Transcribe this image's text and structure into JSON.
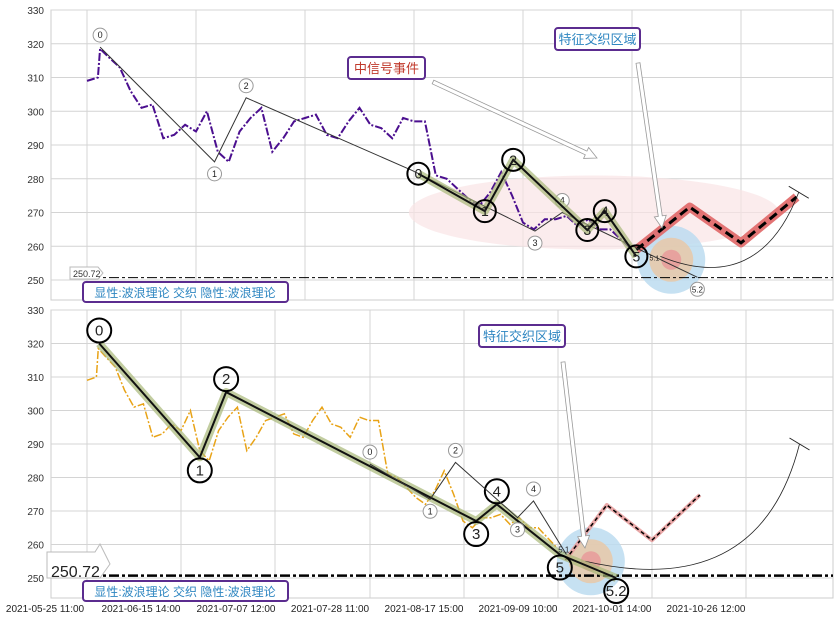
{
  "chart_data": [
    {
      "type": "line",
      "panel": "top",
      "ylim": [
        244,
        330
      ],
      "yticks": [
        250,
        260,
        270,
        280,
        290,
        300,
        310,
        320,
        330
      ],
      "grid": true,
      "price_series": {
        "color": "#4b0f8f",
        "style": "dash-dot",
        "values": [
          309,
          310,
          316,
          313,
          306,
          301,
          302,
          292,
          293,
          296,
          294,
          300,
          288,
          285,
          294,
          298,
          301,
          288,
          292,
          297,
          298,
          299,
          293,
          292,
          297,
          301,
          296,
          295,
          292,
          298,
          297,
          297,
          281,
          280,
          277,
          274,
          272,
          276,
          282,
          275,
          267,
          265,
          268,
          268,
          269,
          266,
          268,
          265,
          265,
          262,
          259
        ],
        "peak": [
          1.2,
          318.5
        ]
      },
      "hline": {
        "value": 250.72,
        "label": "250.72"
      },
      "waves": [
        {
          "kind": "minor",
          "points": [
            [
              1.2,
              319
            ],
            [
              11.7,
              285
            ],
            [
              14.6,
              304
            ],
            [
              29.8,
              282.5
            ],
            [
              41.1,
              264.5
            ],
            [
              43.6,
              270
            ],
            [
              56,
              250.8
            ]
          ],
          "labels": [
            "0",
            "1",
            "2",
            "",
            "3",
            "4",
            "5.2"
          ]
        },
        {
          "kind": "major",
          "points": [
            [
              30.4,
              281.5
            ],
            [
              36.5,
              270.4
            ],
            [
              39.1,
              285.6
            ],
            [
              45.9,
              264.8
            ],
            [
              47.5,
              270.4
            ],
            [
              50.4,
              257
            ]
          ],
          "labels": [
            "0",
            "1",
            "2",
            "3",
            "4",
            "5"
          ],
          "sublabel": "5.1"
        }
      ],
      "projection": {
        "color": "#e06666",
        "points": [
          [
            50.4,
            259
          ],
          [
            55.3,
            271.6
          ],
          [
            60,
            261
          ],
          [
            65.1,
            274.6
          ]
        ]
      },
      "arc": [
        [
          52.6,
          257
        ],
        [
          65.3,
          276
        ]
      ],
      "zone": {
        "center": [
          53.6,
          256
        ],
        "colors": [
          "#bcdcf0",
          "#e8c8a8",
          "#e89a9a"
        ]
      },
      "ellipse_center": [
        46.5,
        270
      ],
      "annotations": [
        {
          "text": "中信号事件",
          "color": "#c0392b"
        },
        {
          "text": "特征交织区域",
          "color": "#2e86c1"
        }
      ],
      "legend": "显性:波浪理论 交织 隐性:波浪理论"
    },
    {
      "type": "line",
      "panel": "bottom",
      "ylim": [
        244,
        330
      ],
      "yticks": [
        250,
        260,
        270,
        280,
        290,
        300,
        310,
        320,
        330
      ],
      "grid": true,
      "xtick_labels": [
        "2021-05-25 11:00",
        "2021-06-15 14:00",
        "2021-07-07 12:00",
        "2021-07-28 11:00",
        "2021-08-17 15:00",
        "2021-09-09 10:00",
        "2021-10-01 14:00",
        "2021-10-26 12:00"
      ],
      "price_series": {
        "color": "#e8a317",
        "style": "dash-dot"
      },
      "hline": {
        "value": 250.72,
        "label": "250.72"
      },
      "waves": [
        {
          "kind": "major",
          "points": [
            [
              1.3,
              320
            ],
            [
              12,
              286
            ],
            [
              14.8,
              305.5
            ],
            [
              41.4,
              267
            ],
            [
              43.6,
              272
            ],
            [
              50.3,
              257
            ],
            [
              56.3,
              250
            ]
          ],
          "labels": [
            "0",
            "1",
            "2",
            "3",
            "4",
            "5",
            "5.2"
          ],
          "sublabel": "5.1"
        },
        {
          "kind": "minor",
          "points": [
            [
              30.1,
              284
            ],
            [
              36.5,
              273.5
            ],
            [
              39.2,
              284.5
            ],
            [
              45.8,
              268
            ],
            [
              47.5,
              273
            ],
            [
              51,
              257
            ]
          ],
          "labels": [
            "0",
            "1",
            "2",
            "3",
            "4",
            ""
          ]
        }
      ],
      "projection": {
        "color": "#e8a0a0",
        "points": [
          [
            50.9,
            255.4
          ],
          [
            55.3,
            271.8
          ],
          [
            60.1,
            261.3
          ],
          [
            65.2,
            274.8
          ]
        ]
      },
      "arc": [
        [
          53,
          255
        ],
        [
          75.8,
          290
        ]
      ],
      "zone": {
        "center": [
          53.6,
          255
        ],
        "colors": [
          "#bcdcf0",
          "#e8c8a8",
          "#e89a9a"
        ]
      },
      "annotations": [
        {
          "text": "特征交织区域",
          "color": "#2e86c1"
        }
      ],
      "legend": "显性:波浪理论 交织 隐性:波浪理论"
    }
  ]
}
